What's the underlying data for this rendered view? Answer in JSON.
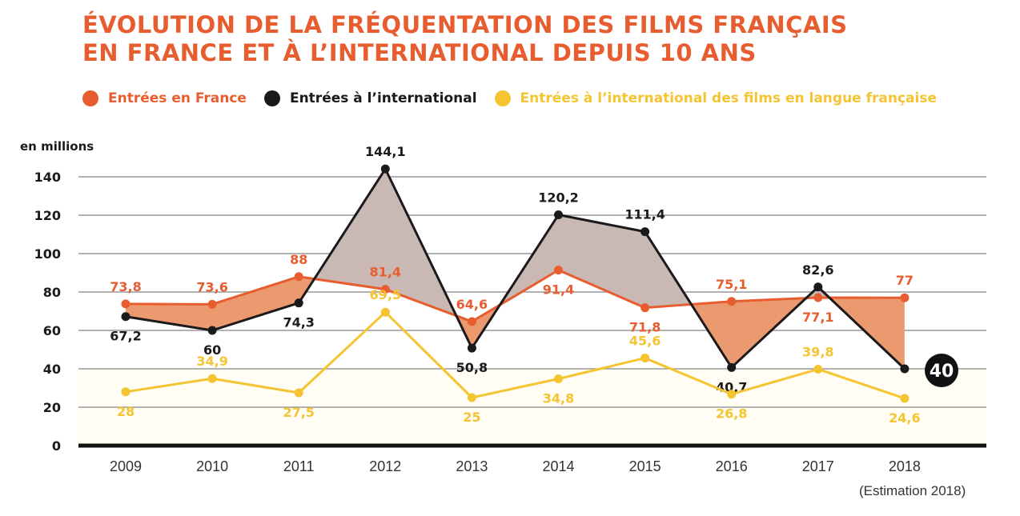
{
  "title_lines": [
    "ÉVOLUTION DE LA FRÉQUENTATION DES FILMS FRANÇAIS",
    "EN FRANCE ET À L’INTERNATIONAL DEPUIS 10 ANS"
  ],
  "colors": {
    "france": "#e85d2f",
    "international": "#1a1a1a",
    "langue": "#f5c431",
    "fill_france": "#eb9a70",
    "fill_international": "#c9b8b3"
  },
  "note": "(Estimation 2018)",
  "chart_data": {
    "type": "line",
    "ylabel": "en millions",
    "ylim": [
      0,
      140
    ],
    "yticks": [
      "0",
      "20",
      "40",
      "60",
      "80",
      "100",
      "120",
      "140"
    ],
    "grid": true,
    "legend": "top",
    "categories": [
      "2009",
      "2010",
      "2011",
      "2012",
      "2013",
      "2014",
      "2015",
      "2016",
      "2017",
      "2018"
    ],
    "series": [
      {
        "name": "Entrées en France",
        "values": [
          73.8,
          73.6,
          88,
          81.4,
          64.6,
          91.4,
          71.8,
          75.1,
          77.1,
          77
        ],
        "labels": [
          "73,8",
          "73,6",
          "88",
          "81,4",
          "64,6",
          "91,4",
          "71,8",
          "75,1",
          "77,1",
          "77"
        ]
      },
      {
        "name": "Entrées à l’international",
        "values": [
          67.2,
          60,
          74.3,
          144.1,
          50.8,
          120.2,
          111.4,
          40.7,
          82.6,
          40
        ],
        "labels": [
          "67,2",
          "60",
          "74,3",
          "144,1",
          "50,8",
          "120,2",
          "111,4",
          "40,7",
          "82,6",
          "40"
        ]
      },
      {
        "name": "Entrées à l’international des films en langue française",
        "values": [
          28,
          34.9,
          27.5,
          69.5,
          25,
          34.8,
          45.6,
          26.8,
          39.8,
          24.6
        ],
        "labels": [
          "28",
          "34,9",
          "27,5",
          "69,5",
          "25",
          "34,8",
          "45,6",
          "26,8",
          "39,8",
          "24,6"
        ]
      }
    ]
  }
}
